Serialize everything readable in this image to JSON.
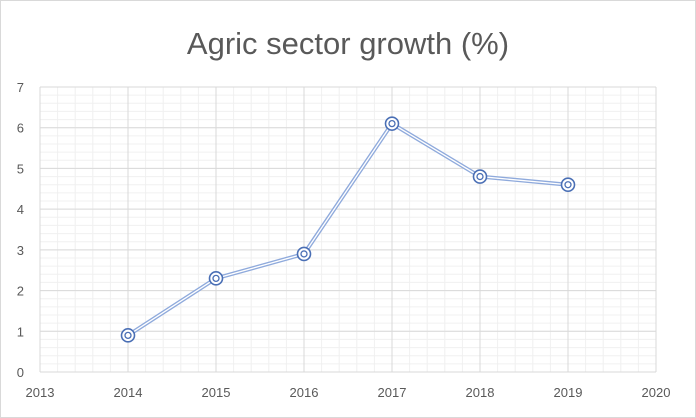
{
  "chart_data": {
    "type": "scatter",
    "title": "Agric sector growth (%)",
    "xlabel": "",
    "ylabel": "",
    "x": [
      2014,
      2015,
      2016,
      2017,
      2018,
      2019
    ],
    "series": [
      {
        "name": "Agric sector growth (%)",
        "values": [
          0.9,
          2.3,
          2.9,
          6.1,
          4.8,
          4.6
        ]
      }
    ],
    "xlim": [
      2013,
      2020
    ],
    "ylim": [
      0,
      7
    ],
    "xticks": [
      "2013",
      "2014",
      "2015",
      "2016",
      "2017",
      "2018",
      "2019",
      "2020"
    ],
    "yticks": [
      "0",
      "1",
      "2",
      "3",
      "4",
      "5",
      "6",
      "7"
    ],
    "grid": true,
    "minor_grid": true,
    "legend": "none",
    "colors": {
      "line": "#8faadc",
      "marker": "#4a6fb5",
      "major_grid": "#d9d9d9",
      "minor_grid": "#f0f0f0"
    }
  }
}
